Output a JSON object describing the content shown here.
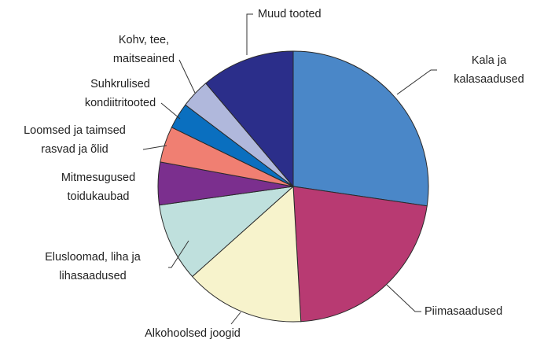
{
  "chart_data": {
    "type": "pie",
    "categories": [
      [
        "Kala ja",
        "kalasaadused"
      ],
      [
        "Piimasaadused"
      ],
      [
        "Alkohoolsed joogid"
      ],
      [
        "Elusloomad, liha ja",
        "lihasaadused"
      ],
      [
        "Mitmesugused",
        "toidukaubad"
      ],
      [
        "Loomsed ja taimsed",
        "rasvad ja õlid"
      ],
      [
        "Suhkrulised",
        "kondiitritooted"
      ],
      [
        "Kohv, tee,",
        "maitseained"
      ],
      [
        "Muud tooted"
      ]
    ],
    "values": [
      27.3,
      21.8,
      14.3,
      9.4,
      5.1,
      4.3,
      3.1,
      3.5,
      11.2
    ],
    "colors": [
      "#4a87c8",
      "#b83a72",
      "#f7f3cc",
      "#bfe0dd",
      "#7b2f8e",
      "#f07f72",
      "#0a6fbf",
      "#b0b8dc",
      "#2b2e8a"
    ]
  }
}
